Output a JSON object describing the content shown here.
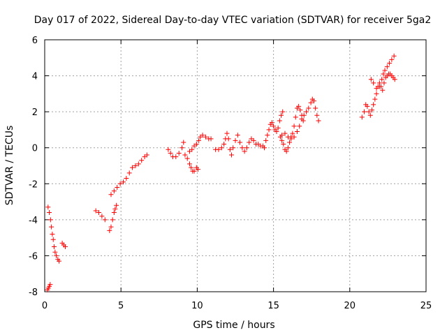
{
  "chart_data": {
    "type": "scatter",
    "title": "Day 017 of 2022, Sidereal Day-to-day VTEC variation (SDTVAR) for receiver 5ga2",
    "xlabel": "GPS time / hours",
    "ylabel": "SDTVAR / TECUs",
    "xlim": [
      0,
      25
    ],
    "ylim": [
      -8,
      6
    ],
    "xticks": [
      0,
      5,
      10,
      15,
      20,
      25
    ],
    "yticks": [
      -8,
      -6,
      -4,
      -2,
      0,
      2,
      4,
      6
    ],
    "xtick_labels": [
      "0",
      "5",
      "10",
      "15",
      "20",
      "25"
    ],
    "ytick_labels": [
      "-8",
      "-6",
      "-4",
      "-2",
      "0",
      "2",
      "4",
      "6"
    ],
    "grid": true,
    "marker": "+",
    "color": "#ff0000",
    "series": [
      {
        "name": "SDTVAR",
        "points": [
          [
            0.18,
            -7.9
          ],
          [
            0.24,
            -7.8
          ],
          [
            0.3,
            -7.7
          ],
          [
            0.36,
            -7.6
          ],
          [
            0.22,
            -3.3
          ],
          [
            0.3,
            -3.6
          ],
          [
            0.38,
            -4.0
          ],
          [
            0.44,
            -4.4
          ],
          [
            0.5,
            -4.8
          ],
          [
            0.56,
            -5.1
          ],
          [
            0.62,
            -5.5
          ],
          [
            0.68,
            -5.8
          ],
          [
            0.76,
            -6.0
          ],
          [
            0.86,
            -6.2
          ],
          [
            0.94,
            -6.3
          ],
          [
            1.15,
            -5.3
          ],
          [
            1.25,
            -5.4
          ],
          [
            1.35,
            -5.5
          ],
          [
            3.35,
            -3.5
          ],
          [
            3.55,
            -3.6
          ],
          [
            3.75,
            -3.8
          ],
          [
            3.95,
            -4.0
          ],
          [
            4.25,
            -4.6
          ],
          [
            4.35,
            -4.4
          ],
          [
            4.45,
            -4.0
          ],
          [
            4.55,
            -3.6
          ],
          [
            4.62,
            -3.4
          ],
          [
            4.7,
            -3.2
          ],
          [
            4.35,
            -2.6
          ],
          [
            4.55,
            -2.4
          ],
          [
            4.75,
            -2.2
          ],
          [
            4.95,
            -2.0
          ],
          [
            5.15,
            -1.9
          ],
          [
            5.35,
            -1.7
          ],
          [
            5.55,
            -1.4
          ],
          [
            5.75,
            -1.1
          ],
          [
            5.95,
            -1.0
          ],
          [
            6.15,
            -0.9
          ],
          [
            6.35,
            -0.7
          ],
          [
            6.55,
            -0.5
          ],
          [
            6.7,
            -0.4
          ],
          [
            8.1,
            -0.1
          ],
          [
            8.25,
            -0.3
          ],
          [
            8.4,
            -0.5
          ],
          [
            8.6,
            -0.5
          ],
          [
            8.8,
            -0.3
          ],
          [
            9.0,
            0.0
          ],
          [
            9.1,
            0.3
          ],
          [
            9.2,
            -0.4
          ],
          [
            9.35,
            -0.6
          ],
          [
            9.5,
            -0.9
          ],
          [
            9.6,
            -1.1
          ],
          [
            9.7,
            -1.3
          ],
          [
            9.8,
            -1.3
          ],
          [
            9.95,
            -1.1
          ],
          [
            10.05,
            -1.2
          ],
          [
            9.5,
            -0.2
          ],
          [
            9.65,
            -0.1
          ],
          [
            9.8,
            0.1
          ],
          [
            9.95,
            0.2
          ],
          [
            10.1,
            0.4
          ],
          [
            10.2,
            0.6
          ],
          [
            10.35,
            0.7
          ],
          [
            10.55,
            0.6
          ],
          [
            10.75,
            0.5
          ],
          [
            10.9,
            0.5
          ],
          [
            11.2,
            -0.1
          ],
          [
            11.4,
            -0.1
          ],
          [
            11.6,
            0.0
          ],
          [
            11.75,
            0.2
          ],
          [
            11.85,
            0.5
          ],
          [
            11.95,
            0.8
          ],
          [
            12.05,
            0.5
          ],
          [
            12.15,
            -0.1
          ],
          [
            12.25,
            -0.4
          ],
          [
            12.35,
            0.0
          ],
          [
            12.5,
            0.4
          ],
          [
            12.65,
            0.7
          ],
          [
            12.8,
            0.3
          ],
          [
            12.95,
            0.0
          ],
          [
            13.1,
            -0.2
          ],
          [
            13.25,
            0.0
          ],
          [
            13.4,
            0.3
          ],
          [
            13.55,
            0.5
          ],
          [
            13.7,
            0.4
          ],
          [
            13.85,
            0.2
          ],
          [
            14.0,
            0.2
          ],
          [
            14.15,
            0.1
          ],
          [
            14.3,
            0.1
          ],
          [
            14.4,
            0.0
          ],
          [
            14.5,
            0.4
          ],
          [
            14.6,
            0.7
          ],
          [
            14.7,
            1.0
          ],
          [
            14.8,
            1.3
          ],
          [
            14.9,
            1.4
          ],
          [
            15.0,
            1.2
          ],
          [
            15.1,
            1.0
          ],
          [
            15.2,
            0.9
          ],
          [
            15.3,
            1.1
          ],
          [
            15.4,
            1.5
          ],
          [
            15.5,
            1.8
          ],
          [
            15.6,
            2.0
          ],
          [
            15.45,
            0.6
          ],
          [
            15.55,
            0.4
          ],
          [
            15.65,
            0.2
          ],
          [
            15.75,
            -0.1
          ],
          [
            15.85,
            -0.2
          ],
          [
            15.95,
            0.0
          ],
          [
            16.05,
            0.3
          ],
          [
            16.15,
            0.6
          ],
          [
            16.25,
            0.8
          ],
          [
            16.35,
            1.2
          ],
          [
            16.45,
            1.7
          ],
          [
            16.55,
            2.2
          ],
          [
            16.65,
            2.3
          ],
          [
            16.75,
            2.1
          ],
          [
            16.85,
            1.8
          ],
          [
            16.95,
            1.5
          ],
          [
            15.55,
            0.7
          ],
          [
            15.75,
            0.8
          ],
          [
            15.95,
            0.6
          ],
          [
            16.15,
            0.5
          ],
          [
            16.35,
            0.6
          ],
          [
            16.55,
            0.9
          ],
          [
            16.7,
            1.2
          ],
          [
            16.85,
            1.6
          ],
          [
            17.0,
            1.8
          ],
          [
            17.15,
            2.0
          ],
          [
            17.3,
            2.2
          ],
          [
            17.45,
            2.5
          ],
          [
            17.55,
            2.7
          ],
          [
            17.65,
            2.6
          ],
          [
            17.75,
            2.2
          ],
          [
            17.85,
            1.8
          ],
          [
            17.95,
            1.5
          ],
          [
            20.8,
            1.7
          ],
          [
            20.95,
            2.0
          ],
          [
            21.05,
            2.4
          ],
          [
            21.15,
            2.3
          ],
          [
            21.25,
            2.0
          ],
          [
            21.35,
            1.8
          ],
          [
            21.45,
            2.1
          ],
          [
            21.55,
            2.4
          ],
          [
            21.65,
            2.7
          ],
          [
            21.75,
            3.0
          ],
          [
            21.85,
            3.4
          ],
          [
            21.95,
            3.6
          ],
          [
            22.05,
            3.4
          ],
          [
            22.15,
            3.2
          ],
          [
            22.25,
            3.6
          ],
          [
            22.35,
            3.9
          ],
          [
            22.45,
            4.0
          ],
          [
            22.55,
            4.1
          ],
          [
            22.65,
            4.1
          ],
          [
            22.75,
            4.0
          ],
          [
            22.85,
            3.9
          ],
          [
            22.95,
            3.8
          ],
          [
            21.4,
            3.8
          ],
          [
            21.55,
            3.6
          ],
          [
            21.75,
            3.3
          ],
          [
            21.95,
            3.4
          ],
          [
            22.1,
            3.8
          ],
          [
            22.2,
            4.1
          ],
          [
            22.3,
            4.3
          ],
          [
            22.45,
            4.5
          ],
          [
            22.6,
            4.7
          ],
          [
            22.75,
            4.9
          ],
          [
            22.9,
            5.1
          ]
        ]
      }
    ]
  }
}
